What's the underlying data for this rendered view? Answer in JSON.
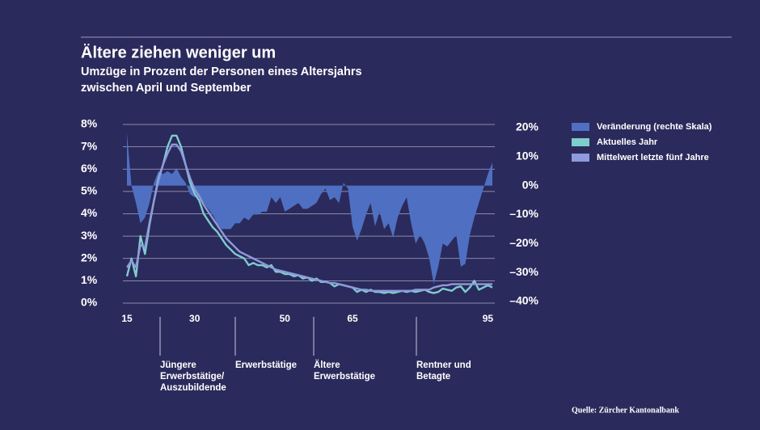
{
  "chart_data": {
    "type": "area-line",
    "title": "Ältere ziehen weniger um",
    "subtitle": [
      "Umzüge in Prozent der Personen eines Altersjahrs",
      "zwischen April und September"
    ],
    "source": "Quelle: Zürcher Kantonalbank",
    "x": [
      15,
      16,
      17,
      18,
      19,
      20,
      21,
      22,
      23,
      24,
      25,
      26,
      27,
      28,
      29,
      30,
      31,
      32,
      33,
      34,
      35,
      36,
      37,
      38,
      39,
      40,
      41,
      42,
      43,
      44,
      45,
      46,
      47,
      48,
      49,
      50,
      51,
      52,
      53,
      54,
      55,
      56,
      57,
      58,
      59,
      60,
      61,
      62,
      63,
      64,
      65,
      66,
      67,
      68,
      69,
      70,
      71,
      72,
      73,
      74,
      75,
      76,
      77,
      78,
      79,
      80,
      81,
      82,
      83,
      84,
      85,
      86,
      87,
      88,
      89,
      90,
      91,
      92,
      93,
      94,
      95,
      96
    ],
    "xlim": [
      15,
      96
    ],
    "xticks": [
      15,
      30,
      50,
      65,
      95
    ],
    "ylim": [
      0,
      8
    ],
    "yticks": [
      {
        "value": 0,
        "label": "0%"
      },
      {
        "value": 1,
        "label": "1%"
      },
      {
        "value": 2,
        "label": "2%"
      },
      {
        "value": 3,
        "label": "3%"
      },
      {
        "value": 4,
        "label": "4%"
      },
      {
        "value": 5,
        "label": "5%"
      },
      {
        "value": 6,
        "label": "6%"
      },
      {
        "value": 7,
        "label": "7%"
      },
      {
        "value": 8,
        "label": "8%"
      }
    ],
    "y2lim": [
      -40,
      20
    ],
    "y2ticks": [
      {
        "value": -40,
        "label": "–40%"
      },
      {
        "value": -30,
        "label": "–30%"
      },
      {
        "value": -20,
        "label": "–20%"
      },
      {
        "value": -10,
        "label": "–10%"
      },
      {
        "value": 0,
        "label": "0%"
      },
      {
        "value": 10,
        "label": "10%"
      },
      {
        "value": 20,
        "label": "20%"
      }
    ],
    "grid": true,
    "series": [
      {
        "name": "Veränderung (rechte Skala)",
        "type": "area",
        "axis": "y2",
        "color": "#4f70c2",
        "values": [
          18,
          0,
          -6,
          -13,
          -11,
          -6,
          1,
          5,
          4,
          5,
          4,
          6,
          3,
          1,
          -3,
          -4,
          -4,
          -6,
          -8,
          -10,
          -13,
          -15,
          -15,
          -15,
          -13,
          -13,
          -11,
          -12,
          -10,
          -10,
          -9,
          -9,
          -4,
          -6,
          -4,
          -9,
          -8,
          -7,
          -6,
          -8,
          -8,
          -7,
          -6,
          -3,
          -1,
          -5,
          -4,
          -6,
          1,
          -1,
          -14,
          -19,
          -15,
          -10,
          -6,
          -14,
          -9,
          -15,
          -13,
          -18,
          -11,
          -7,
          -4,
          -13,
          -20,
          -17,
          -20,
          -25,
          -34,
          -28,
          -20,
          -21,
          -19,
          -17,
          -28,
          -27,
          -17,
          -11,
          -6,
          -1,
          4,
          8
        ]
      },
      {
        "name": "Aktuelles Jahr",
        "type": "line",
        "color": "#7fcccc",
        "values": [
          1.2,
          2.0,
          1.2,
          3.0,
          2.2,
          3.5,
          4.6,
          5.6,
          6.2,
          7.0,
          7.5,
          7.5,
          7.0,
          6.2,
          5.4,
          4.9,
          4.6,
          4.0,
          3.7,
          3.4,
          3.2,
          2.9,
          2.6,
          2.4,
          2.2,
          2.1,
          2.0,
          1.7,
          1.8,
          1.7,
          1.7,
          1.6,
          1.7,
          1.4,
          1.4,
          1.3,
          1.3,
          1.2,
          1.25,
          1.1,
          1.15,
          1.0,
          1.1,
          0.95,
          0.95,
          0.9,
          0.75,
          0.85,
          0.8,
          0.75,
          0.7,
          0.5,
          0.6,
          0.5,
          0.6,
          0.5,
          0.5,
          0.45,
          0.5,
          0.45,
          0.5,
          0.55,
          0.5,
          0.55,
          0.5,
          0.55,
          0.6,
          0.5,
          0.45,
          0.5,
          0.65,
          0.6,
          0.55,
          0.7,
          0.75,
          0.5,
          0.7,
          1.0,
          0.6,
          0.7,
          0.8,
          0.7
        ]
      },
      {
        "name": "Mittelwert letzte fünf Jahre",
        "type": "line",
        "color": "#8f99dc",
        "values": [
          1.6,
          1.9,
          1.6,
          2.6,
          2.5,
          3.6,
          4.6,
          5.5,
          6.2,
          6.7,
          7.1,
          7.1,
          6.8,
          6.2,
          5.6,
          5.1,
          4.8,
          4.4,
          4.1,
          3.8,
          3.5,
          3.2,
          2.9,
          2.7,
          2.5,
          2.3,
          2.2,
          2.1,
          2.0,
          1.9,
          1.8,
          1.7,
          1.6,
          1.5,
          1.45,
          1.4,
          1.35,
          1.3,
          1.25,
          1.2,
          1.15,
          1.1,
          1.05,
          1.0,
          0.95,
          0.9,
          0.9,
          0.85,
          0.8,
          0.75,
          0.7,
          0.65,
          0.6,
          0.6,
          0.55,
          0.55,
          0.55,
          0.55,
          0.55,
          0.55,
          0.55,
          0.55,
          0.55,
          0.55,
          0.6,
          0.6,
          0.6,
          0.6,
          0.7,
          0.75,
          0.8,
          0.8,
          0.85,
          0.85,
          0.85,
          0.85,
          0.85,
          0.85,
          0.85,
          0.85,
          0.85,
          0.85
        ]
      }
    ],
    "annotations": [
      [
        "Jüngere",
        "Erwerbstätige/",
        "Auszubildende"
      ],
      [
        "Erwerbstätige"
      ],
      [
        "Ältere",
        "Erwerbstätige"
      ],
      [
        "Rentner und",
        "Betagte"
      ]
    ]
  }
}
